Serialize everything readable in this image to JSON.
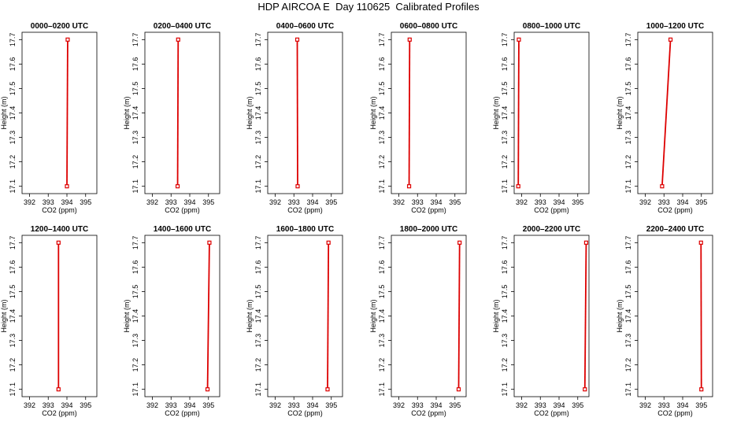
{
  "title": "HDP AIRCOA E  Day 110625  Calibrated Profiles",
  "chart_data": {
    "type": "line",
    "xlabel": "CO2 (ppm)",
    "ylabel": "Height (m)",
    "xlim": [
      391.6,
      395.6
    ],
    "ylim": [
      17.07,
      17.73
    ],
    "xticks": [
      392,
      393,
      394,
      395
    ],
    "yticks": [
      17.1,
      17.2,
      17.3,
      17.4,
      17.5,
      17.6,
      17.7
    ],
    "line_color": "#dd0000",
    "panels": [
      {
        "title": "0000–0200 UTC",
        "points": [
          {
            "x": 394.0,
            "y": 17.1
          },
          {
            "x": 394.04,
            "y": 17.7
          }
        ]
      },
      {
        "title": "0200–0400 UTC",
        "points": [
          {
            "x": 393.35,
            "y": 17.1
          },
          {
            "x": 393.38,
            "y": 17.7
          }
        ]
      },
      {
        "title": "0400–0600 UTC",
        "points": [
          {
            "x": 393.2,
            "y": 17.1
          },
          {
            "x": 393.18,
            "y": 17.7
          }
        ]
      },
      {
        "title": "0600–0800 UTC",
        "points": [
          {
            "x": 392.55,
            "y": 17.1
          },
          {
            "x": 392.58,
            "y": 17.7
          }
        ]
      },
      {
        "title": "0800–1000 UTC",
        "points": [
          {
            "x": 391.82,
            "y": 17.1
          },
          {
            "x": 391.85,
            "y": 17.7
          }
        ]
      },
      {
        "title": "1000–1200 UTC",
        "points": [
          {
            "x": 392.9,
            "y": 17.1
          },
          {
            "x": 393.35,
            "y": 17.7
          }
        ]
      },
      {
        "title": "1200–1400 UTC",
        "points": [
          {
            "x": 393.55,
            "y": 17.1
          },
          {
            "x": 393.55,
            "y": 17.7
          }
        ]
      },
      {
        "title": "1400–1600 UTC",
        "points": [
          {
            "x": 394.95,
            "y": 17.1
          },
          {
            "x": 395.05,
            "y": 17.7
          }
        ]
      },
      {
        "title": "1600–1800 UTC",
        "points": [
          {
            "x": 394.8,
            "y": 17.1
          },
          {
            "x": 394.85,
            "y": 17.7
          }
        ]
      },
      {
        "title": "1800–2000 UTC",
        "points": [
          {
            "x": 395.2,
            "y": 17.1
          },
          {
            "x": 395.25,
            "y": 17.7
          }
        ]
      },
      {
        "title": "2000–2200 UTC",
        "points": [
          {
            "x": 395.38,
            "y": 17.1
          },
          {
            "x": 395.45,
            "y": 17.7
          }
        ]
      },
      {
        "title": "2200–2400 UTC",
        "points": [
          {
            "x": 395.0,
            "y": 17.1
          },
          {
            "x": 394.98,
            "y": 17.7
          }
        ]
      }
    ]
  }
}
